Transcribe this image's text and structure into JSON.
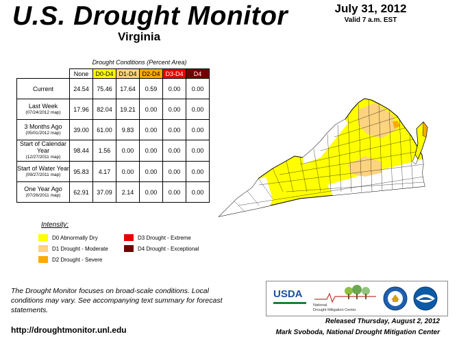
{
  "header": {
    "title": "U.S. Drought Monitor",
    "state": "Virginia",
    "date": "July 31, 2012",
    "valid": "Valid 7 a.m. EST"
  },
  "table": {
    "caption": "Drought Conditions (Percent Area)",
    "columns": [
      "None",
      "D0-D4",
      "D1-D4",
      "D2-D4",
      "D3-D4",
      "D4"
    ],
    "rows": [
      {
        "label": "Current",
        "sub": "",
        "values": [
          "24.54",
          "75.46",
          "17.64",
          "0.59",
          "0.00",
          "0.00"
        ]
      },
      {
        "label": "Last Week",
        "sub": "(07/24/2012 map)",
        "values": [
          "17.96",
          "82.04",
          "19.21",
          "0.00",
          "0.00",
          "0.00"
        ]
      },
      {
        "label": "3 Months Ago",
        "sub": "(05/01/2012 map)",
        "values": [
          "39.00",
          "61.00",
          "9.83",
          "0.00",
          "0.00",
          "0.00"
        ]
      },
      {
        "label": "Start of Calendar Year",
        "sub": "(12/27/2011 map)",
        "values": [
          "98.44",
          "1.56",
          "0.00",
          "0.00",
          "0.00",
          "0.00"
        ]
      },
      {
        "label": "Start of Water Year",
        "sub": "(09/27/2011 map)",
        "values": [
          "95.83",
          "4.17",
          "0.00",
          "0.00",
          "0.00",
          "0.00"
        ]
      },
      {
        "label": "One Year Ago",
        "sub": "(07/26/2011 map)",
        "values": [
          "62.91",
          "37.09",
          "2.14",
          "0.00",
          "0.00",
          "0.00"
        ]
      }
    ]
  },
  "legend": {
    "title": "Intensity:",
    "items": [
      {
        "label": "D0 Abnormally Dry",
        "color": "#ffff00"
      },
      {
        "label": "D1 Drought - Moderate",
        "color": "#fcd37f"
      },
      {
        "label": "D2 Drought - Severe",
        "color": "#ffaa00"
      },
      {
        "label": "D3 Drought - Extreme",
        "color": "#e60000"
      },
      {
        "label": "D4 Drought - Exceptional",
        "color": "#730000"
      }
    ]
  },
  "footer": {
    "note": "The Drought Monitor focuses on broad-scale conditions. Local conditions may vary. See accompanying text summary for forecast statements.",
    "url": "http://droughtmonitor.unl.edu",
    "released": "Released Thursday, August 2, 2012",
    "author": "Mark Svoboda, National Drought Mitigation Center"
  },
  "logos": {
    "usda": "USDA",
    "ndmc_line1": "National",
    "ndmc_line2": "Drought Mitigation Center"
  },
  "map_colors": {
    "d0": "#ffff00",
    "d1": "#fcd37f",
    "d2": "#ffaa00",
    "none": "#ffffff"
  }
}
